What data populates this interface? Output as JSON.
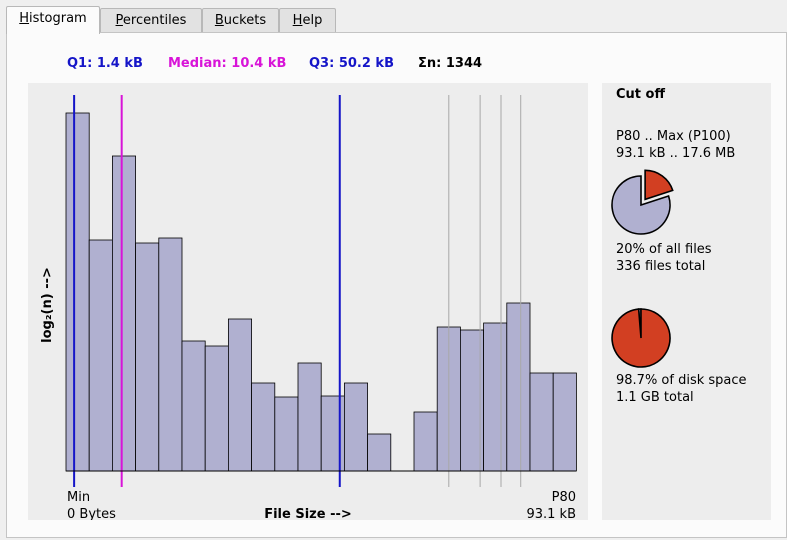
{
  "tabs": [
    {
      "pre": "",
      "u": "H",
      "post": "istogram",
      "active": true
    },
    {
      "pre": "",
      "u": "P",
      "post": "ercentiles",
      "active": false
    },
    {
      "pre": "",
      "u": "B",
      "post": "uckets",
      "active": false
    },
    {
      "pre": "",
      "u": "H",
      "post": "elp",
      "active": false
    }
  ],
  "stats": {
    "q1": "Q1: 1.4 kB",
    "median": "Median: 10.4 kB",
    "q3": "Q3: 50.2 kB",
    "count": "Σn: 1344"
  },
  "colors": {
    "q1": "#1515c8",
    "median": "#d814d8",
    "q3": "#1515c8",
    "bar_fill": "#b0b0d0",
    "pie_red": "#d23f22",
    "pie_slate": "#b0b0d0"
  },
  "chart_data": {
    "type": "bar",
    "title": "",
    "xlabel": "File Size  -->",
    "ylabel": "log₂(n)  -->",
    "x_left": "Min",
    "x_left_value": "0 Bytes",
    "x_right": "P80",
    "x_right_value": "93.1 kB",
    "ylim": [
      0,
      360
    ],
    "values": [
      358,
      231,
      315,
      228,
      233,
      130,
      125,
      152,
      88,
      74,
      108,
      75,
      88,
      37,
      0,
      59,
      144,
      141,
      148,
      168,
      98,
      98
    ],
    "markers": [
      {
        "name": "Q1",
        "bucket": 0.35
      },
      {
        "name": "Median",
        "bucket": 2.4
      },
      {
        "name": "Q3",
        "bucket": 11.8
      }
    ],
    "percentile_lines": [
      16.5,
      17.85,
      18.75,
      19.6
    ]
  },
  "sidebar": {
    "title": "Cut off",
    "range_label": "P80 .. Max (P100)",
    "range_value": "93.1 kB .. 17.6 MB",
    "files_pct": "20% of all files",
    "files_total": "336 files total",
    "files_fraction": 0.2,
    "disk_pct": "98.7% of disk space",
    "disk_total": "1.1 GB total",
    "disk_fraction": 0.987
  }
}
